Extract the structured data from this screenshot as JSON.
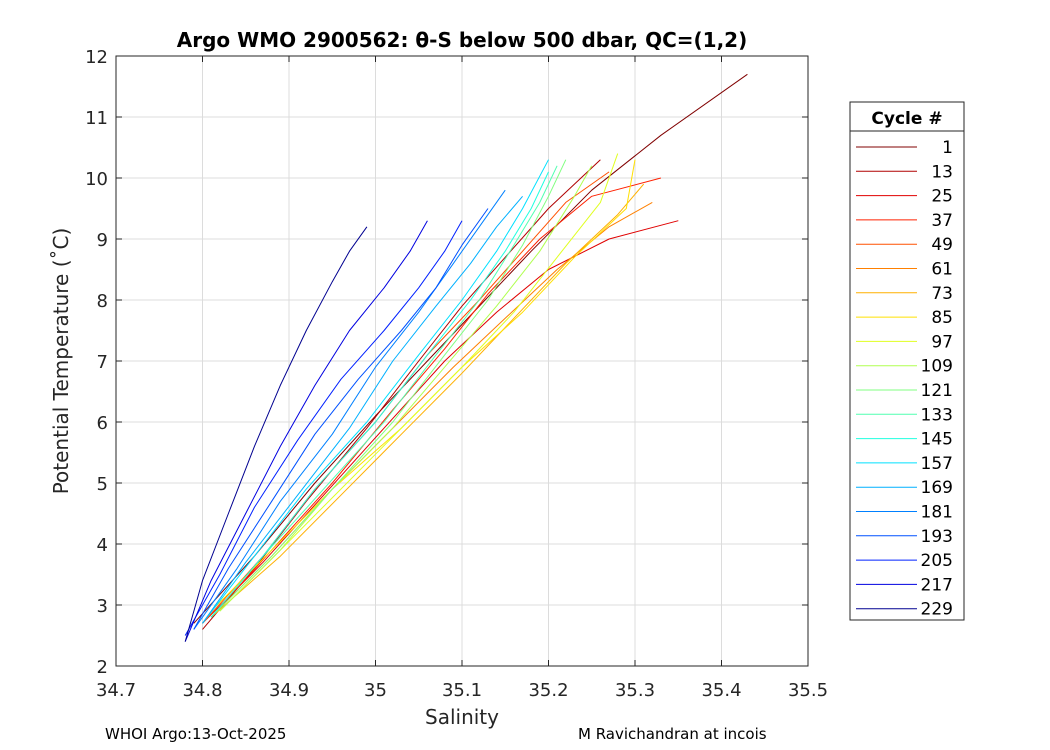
{
  "chart_data": {
    "type": "line",
    "title": "Argo WMO 2900562: θ-S below 500 dbar,  QC=(1,2)",
    "xlabel": "Salinity",
    "ylabel": "Potential Temperature (˚C)",
    "xlim": [
      34.7,
      35.5
    ],
    "ylim": [
      2,
      12
    ],
    "xticks": [
      "34.7",
      "34.8",
      "34.9",
      "35",
      "35.1",
      "35.2",
      "35.3",
      "35.4",
      "35.5"
    ],
    "yticks": [
      "2",
      "3",
      "4",
      "5",
      "6",
      "7",
      "8",
      "9",
      "10",
      "11",
      "12"
    ],
    "grid": true,
    "legend": {
      "title": "Cycle #",
      "placement": "right",
      "entries": [
        {
          "label": "1",
          "color": "#800000"
        },
        {
          "label": "13",
          "color": "#b00000"
        },
        {
          "label": "25",
          "color": "#e00000"
        },
        {
          "label": "37",
          "color": "#ff2000"
        },
        {
          "label": "49",
          "color": "#ff5000"
        },
        {
          "label": "61",
          "color": "#ff8000"
        },
        {
          "label": "73",
          "color": "#ffb000"
        },
        {
          "label": "85",
          "color": "#ffe000"
        },
        {
          "label": "97",
          "color": "#e0ff20"
        },
        {
          "label": "109",
          "color": "#b0ff50"
        },
        {
          "label": "121",
          "color": "#80ff80"
        },
        {
          "label": "133",
          "color": "#50ffb0"
        },
        {
          "label": "145",
          "color": "#20ffe0"
        },
        {
          "label": "157",
          "color": "#00e0ff"
        },
        {
          "label": "169",
          "color": "#00b0ff"
        },
        {
          "label": "181",
          "color": "#0080ff"
        },
        {
          "label": "193",
          "color": "#0050ff"
        },
        {
          "label": "205",
          "color": "#0020ff"
        },
        {
          "label": "217",
          "color": "#0000e0"
        },
        {
          "label": "229",
          "color": "#000090"
        }
      ]
    },
    "series": [
      {
        "name": "1",
        "color": "#800000",
        "x": [
          34.79,
          34.86,
          34.93,
          35.0,
          35.06,
          35.12,
          35.18,
          35.25,
          35.33,
          35.43
        ],
        "y": [
          2.7,
          3.8,
          5.0,
          6.1,
          7.0,
          7.9,
          8.8,
          9.8,
          10.7,
          11.7
        ]
      },
      {
        "name": "13",
        "color": "#b00000",
        "x": [
          34.8,
          34.86,
          34.92,
          34.99,
          35.05,
          35.1,
          35.15,
          35.2,
          35.26
        ],
        "y": [
          2.6,
          3.6,
          4.7,
          5.9,
          7.0,
          7.9,
          8.7,
          9.5,
          10.3
        ]
      },
      {
        "name": "25",
        "color": "#e00000",
        "x": [
          34.8,
          34.87,
          34.94,
          35.01,
          35.08,
          35.14,
          35.2,
          35.27,
          35.35
        ],
        "y": [
          2.7,
          3.7,
          4.8,
          5.9,
          7.0,
          7.8,
          8.5,
          9.0,
          9.3
        ]
      },
      {
        "name": "37",
        "color": "#ff2000",
        "x": [
          34.81,
          34.88,
          34.95,
          35.02,
          35.08,
          35.13,
          35.19,
          35.25,
          35.33
        ],
        "y": [
          2.8,
          3.9,
          5.0,
          6.2,
          7.2,
          8.1,
          9.0,
          9.7,
          10.0
        ]
      },
      {
        "name": "49",
        "color": "#ff5000",
        "x": [
          34.8,
          34.87,
          34.93,
          35.0,
          35.06,
          35.12,
          35.17,
          35.22,
          35.27
        ],
        "y": [
          2.7,
          3.8,
          4.9,
          6.0,
          7.1,
          8.0,
          8.8,
          9.6,
          10.1
        ]
      },
      {
        "name": "61",
        "color": "#ff8000",
        "x": [
          34.81,
          34.88,
          34.95,
          35.02,
          35.09,
          35.15,
          35.21,
          35.27,
          35.32
        ],
        "y": [
          2.8,
          3.8,
          4.9,
          5.9,
          6.9,
          7.7,
          8.5,
          9.2,
          9.6
        ]
      },
      {
        "name": "73",
        "color": "#ffb000",
        "x": [
          34.81,
          34.89,
          34.96,
          35.03,
          35.1,
          35.16,
          35.22,
          35.28,
          35.31
        ],
        "y": [
          2.8,
          3.8,
          4.8,
          5.8,
          6.8,
          7.7,
          8.6,
          9.4,
          9.9
        ]
      },
      {
        "name": "85",
        "color": "#ffe000",
        "x": [
          34.81,
          34.88,
          34.95,
          35.03,
          35.1,
          35.17,
          35.23,
          35.29,
          35.3
        ],
        "y": [
          2.9,
          3.9,
          4.9,
          5.9,
          6.9,
          7.8,
          8.7,
          9.5,
          10.3
        ]
      },
      {
        "name": "97",
        "color": "#e0ff20",
        "x": [
          34.82,
          34.89,
          34.96,
          35.03,
          35.1,
          35.16,
          35.21,
          35.26,
          35.28
        ],
        "y": [
          2.9,
          3.9,
          4.9,
          5.9,
          6.9,
          7.8,
          8.7,
          9.6,
          10.4
        ]
      },
      {
        "name": "109",
        "color": "#b0ff50",
        "x": [
          34.82,
          34.89,
          34.95,
          35.02,
          35.08,
          35.14,
          35.19,
          35.23,
          35.25
        ],
        "y": [
          2.9,
          3.9,
          4.9,
          5.9,
          6.9,
          7.9,
          8.8,
          9.7,
          10.2
        ]
      },
      {
        "name": "121",
        "color": "#80ff80",
        "x": [
          34.81,
          34.88,
          34.95,
          35.02,
          35.08,
          35.13,
          35.17,
          35.2,
          35.22
        ],
        "y": [
          2.8,
          3.8,
          4.9,
          6.0,
          7.1,
          8.0,
          8.9,
          9.7,
          10.3
        ]
      },
      {
        "name": "133",
        "color": "#50ffb0",
        "x": [
          34.81,
          34.87,
          34.94,
          35.01,
          35.07,
          35.12,
          35.16,
          35.19,
          35.21
        ],
        "y": [
          2.8,
          3.8,
          4.9,
          6.0,
          7.1,
          8.0,
          8.9,
          9.6,
          10.2
        ]
      },
      {
        "name": "145",
        "color": "#20ffe0",
        "x": [
          34.81,
          34.87,
          34.93,
          35.0,
          35.06,
          35.11,
          35.15,
          35.18,
          35.2
        ],
        "y": [
          2.8,
          3.8,
          4.9,
          6.0,
          7.1,
          8.0,
          8.8,
          9.5,
          10.1
        ]
      },
      {
        "name": "157",
        "color": "#00e0ff",
        "x": [
          34.8,
          34.86,
          34.92,
          34.99,
          35.05,
          35.1,
          35.14,
          35.17,
          35.2
        ],
        "y": [
          2.7,
          3.8,
          4.9,
          6.0,
          7.1,
          8.0,
          8.8,
          9.5,
          10.3
        ]
      },
      {
        "name": "169",
        "color": "#00b0ff",
        "x": [
          34.8,
          34.85,
          34.91,
          34.97,
          35.02,
          35.07,
          35.11,
          35.14,
          35.17
        ],
        "y": [
          2.7,
          3.7,
          4.8,
          5.9,
          7.0,
          7.9,
          8.6,
          9.2,
          9.7
        ]
      },
      {
        "name": "181",
        "color": "#0080ff",
        "x": [
          34.79,
          34.84,
          34.89,
          34.95,
          35.0,
          35.05,
          35.09,
          35.12,
          35.15
        ],
        "y": [
          2.6,
          3.6,
          4.7,
          5.8,
          6.9,
          7.8,
          8.6,
          9.2,
          9.8
        ]
      },
      {
        "name": "193",
        "color": "#0050ff",
        "x": [
          34.79,
          34.83,
          34.88,
          34.93,
          34.98,
          35.03,
          35.07,
          35.1,
          35.13
        ],
        "y": [
          2.6,
          3.6,
          4.7,
          5.8,
          6.7,
          7.5,
          8.2,
          8.9,
          9.5
        ]
      },
      {
        "name": "205",
        "color": "#0020ff",
        "x": [
          34.78,
          34.82,
          34.86,
          34.91,
          34.96,
          35.01,
          35.05,
          35.08,
          35.1
        ],
        "y": [
          2.5,
          3.5,
          4.6,
          5.7,
          6.7,
          7.5,
          8.2,
          8.8,
          9.3
        ]
      },
      {
        "name": "217",
        "color": "#0000e0",
        "x": [
          34.78,
          34.81,
          34.85,
          34.89,
          34.93,
          34.97,
          35.01,
          35.04,
          35.06
        ],
        "y": [
          2.4,
          3.4,
          4.5,
          5.6,
          6.6,
          7.5,
          8.2,
          8.8,
          9.3
        ]
      },
      {
        "name": "229",
        "color": "#000090",
        "x": [
          34.78,
          34.8,
          34.83,
          34.86,
          34.89,
          34.92,
          34.95,
          34.97,
          34.99
        ],
        "y": [
          2.4,
          3.4,
          4.5,
          5.6,
          6.6,
          7.5,
          8.3,
          8.8,
          9.2
        ]
      }
    ]
  },
  "footer": {
    "left": "WHOI Argo:13-Oct-2025",
    "right": "M Ravichandran at incois"
  }
}
